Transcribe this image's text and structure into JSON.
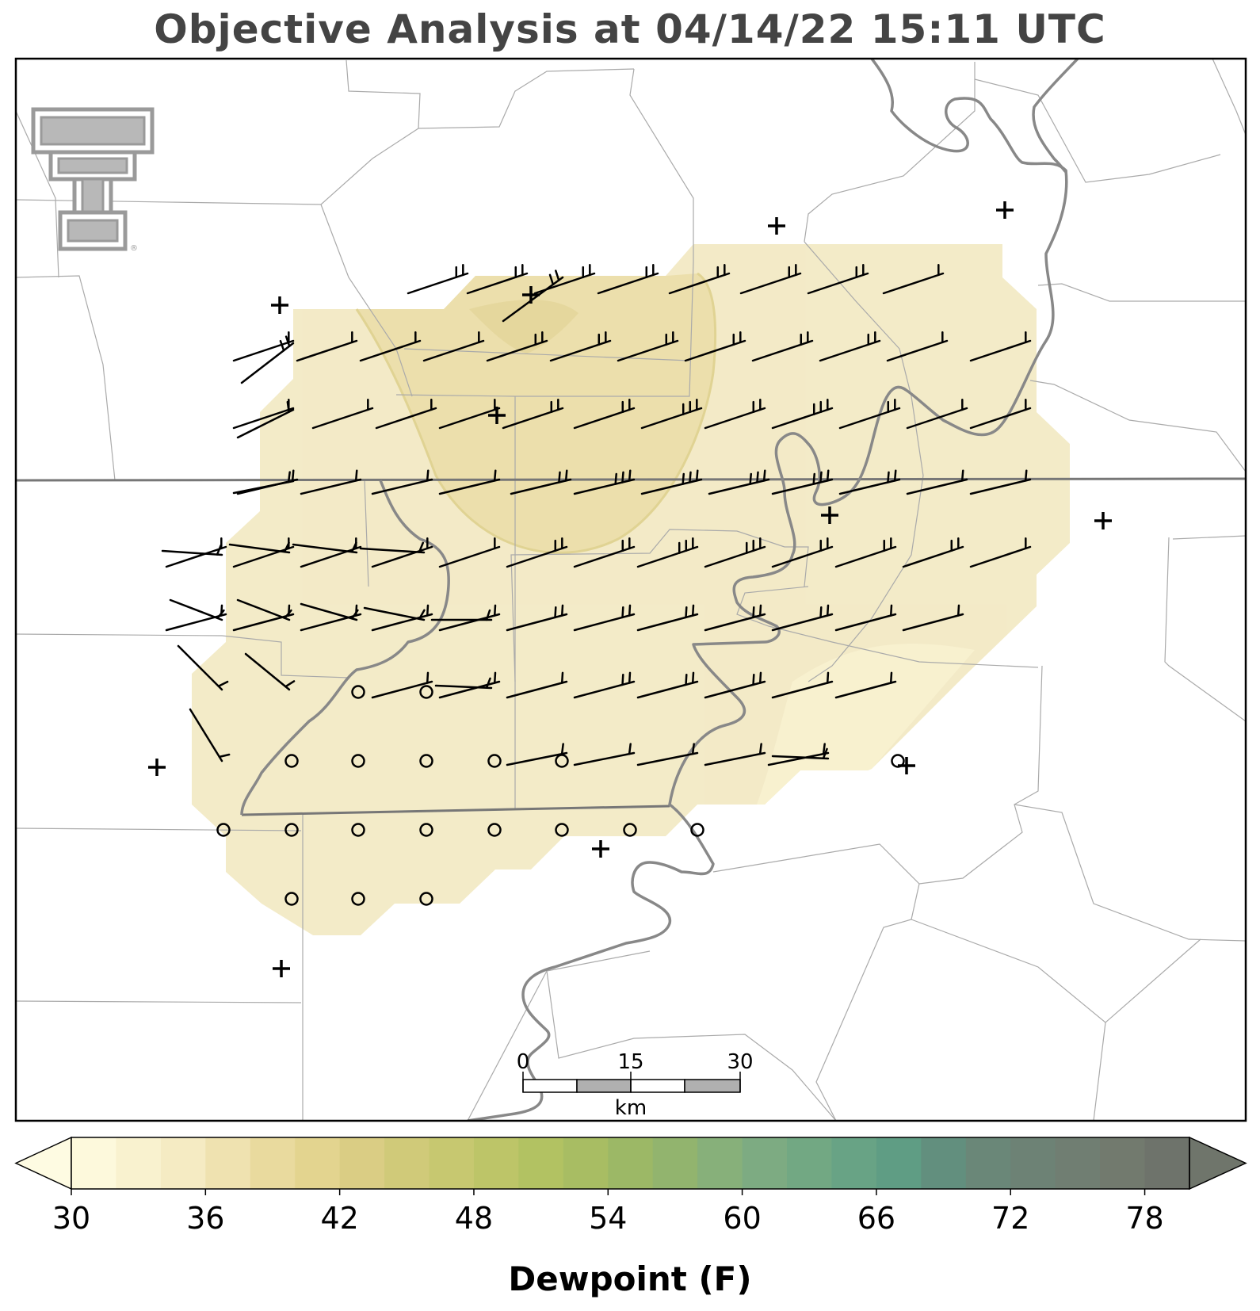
{
  "title": "Objective Analysis at 04/14/22 15:11 UTC",
  "colorbar": {
    "label": "Dewpoint (F)",
    "ticks": [
      "30",
      "36",
      "42",
      "48",
      "54",
      "60",
      "66",
      "72",
      "78"
    ],
    "min": 30,
    "max": 80,
    "step": 2,
    "colors": [
      "#fdf9dc",
      "#f9f2cf",
      "#f5ebc3",
      "#efe2b0",
      "#e9da9e",
      "#e3d48f",
      "#dacd84",
      "#d0ca79",
      "#c7c870",
      "#bdc568",
      "#b2c262",
      "#a8bd63",
      "#9cb866",
      "#92b46e",
      "#87b07a",
      "#7dab82",
      "#72a883",
      "#68a385",
      "#5f9d84",
      "#628f7e",
      "#6a8778",
      "#6d8275",
      "#707e72",
      "#727a6e",
      "#6e736b"
    ],
    "under_color": "#fefbe2",
    "over_color": "#6f756b"
  },
  "scalebar": {
    "labels": [
      "0",
      "15",
      "30"
    ],
    "unit": "km"
  },
  "field": {
    "variable": "dewpoint",
    "dominant_range_F": [
      36,
      38
    ],
    "maximum_pocket_range_F": [
      38,
      40
    ],
    "edge_range_F": [
      34,
      36
    ]
  },
  "colors": {
    "state_border": "#7a7a7a",
    "county_border": "#aaaaaa",
    "river": "#808080",
    "frame": "#000000",
    "logo": "#9a9a9a"
  },
  "icons": {
    "logo": "texas-tech-double-t-logo",
    "station": "plus-marker",
    "calm": "circle-marker",
    "wind": "wind-barb"
  }
}
